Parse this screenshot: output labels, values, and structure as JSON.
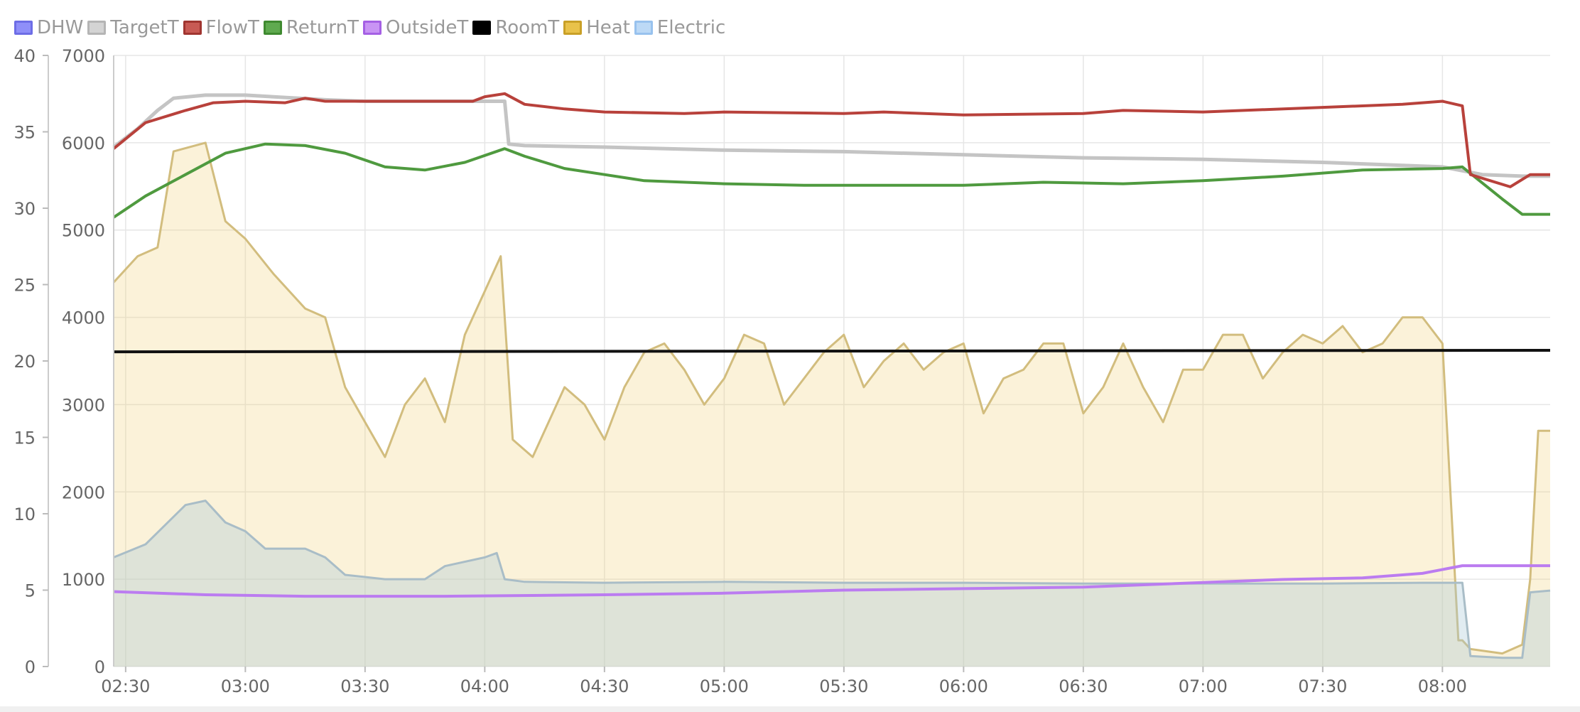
{
  "legend": [
    {
      "name": "DHW",
      "color": "#7b7bf7"
    },
    {
      "name": "TargetT",
      "color": "#c4c4c4"
    },
    {
      "name": "FlowT",
      "color": "#b8413b"
    },
    {
      "name": "ReturnT",
      "color": "#4f9a3f"
    },
    {
      "name": "OutsideT",
      "color": "#bb7cf0"
    },
    {
      "name": "RoomT",
      "color": "#000000"
    },
    {
      "name": "Heat",
      "color": "#e7bd3d"
    },
    {
      "name": "Electric",
      "color": "#b3d4f5"
    }
  ],
  "chart_data": {
    "type": "line",
    "grid": true,
    "legend_position": "top-left",
    "x_ticks": [
      "02:30",
      "03:00",
      "03:30",
      "04:00",
      "04:30",
      "05:00",
      "05:30",
      "06:00",
      "06:30",
      "07:00",
      "07:30",
      "08:00"
    ],
    "xlim": [
      "02:27",
      "08:27"
    ],
    "y_left": {
      "ticks": [
        0,
        5,
        10,
        15,
        20,
        25,
        30,
        35,
        40
      ],
      "ylim": [
        0,
        40
      ]
    },
    "y_right": {
      "ticks": [
        0,
        1000,
        2000,
        3000,
        4000,
        5000,
        6000,
        7000
      ],
      "ylim": [
        0,
        7000
      ]
    },
    "series": [
      {
        "name": "FlowT",
        "axis": "left",
        "color": "#b8413b",
        "type": "line",
        "x": [
          "02:27",
          "02:35",
          "02:45",
          "02:52",
          "03:00",
          "03:10",
          "03:15",
          "03:20",
          "03:40",
          "03:57",
          "04:00",
          "04:05",
          "04:10",
          "04:20",
          "04:30",
          "04:50",
          "05:00",
          "05:30",
          "05:40",
          "06:00",
          "06:30",
          "06:40",
          "07:00",
          "07:30",
          "07:50",
          "08:00",
          "08:05",
          "08:07",
          "08:17",
          "08:22",
          "08:27"
        ],
        "y": [
          33.9,
          35.6,
          36.4,
          36.9,
          37.0,
          36.9,
          37.2,
          37.0,
          37.0,
          37.0,
          37.3,
          37.5,
          36.8,
          36.5,
          36.3,
          36.2,
          36.3,
          36.2,
          36.3,
          36.1,
          36.2,
          36.4,
          36.3,
          36.6,
          36.8,
          37.0,
          36.7,
          32.2,
          31.4,
          32.2,
          32.2
        ]
      },
      {
        "name": "TargetT",
        "axis": "left",
        "color": "#c4c4c4",
        "type": "line",
        "x": [
          "02:27",
          "02:33",
          "02:38",
          "02:42",
          "02:50",
          "03:00",
          "03:20",
          "03:30",
          "04:05",
          "04:06",
          "04:10",
          "04:30",
          "05:00",
          "05:30",
          "06:00",
          "06:30",
          "07:00",
          "07:30",
          "08:00",
          "08:10",
          "08:20",
          "08:27"
        ],
        "y": [
          34.0,
          35.2,
          36.4,
          37.2,
          37.4,
          37.4,
          37.1,
          37.0,
          37.0,
          34.2,
          34.1,
          34.0,
          33.8,
          33.7,
          33.5,
          33.3,
          33.2,
          33.0,
          32.7,
          32.2,
          32.1,
          32.1
        ]
      },
      {
        "name": "ReturnT",
        "axis": "left",
        "color": "#4f9a3f",
        "type": "line",
        "x": [
          "02:27",
          "02:35",
          "02:45",
          "02:55",
          "03:05",
          "03:15",
          "03:25",
          "03:35",
          "03:45",
          "03:55",
          "04:05",
          "04:10",
          "04:20",
          "04:30",
          "04:40",
          "05:00",
          "05:20",
          "05:40",
          "06:00",
          "06:20",
          "06:40",
          "07:00",
          "07:20",
          "07:40",
          "08:00",
          "08:05",
          "08:15",
          "08:20",
          "08:27"
        ],
        "y": [
          29.4,
          30.8,
          32.2,
          33.6,
          34.2,
          34.1,
          33.6,
          32.7,
          32.5,
          33.0,
          33.9,
          33.4,
          32.6,
          32.2,
          31.8,
          31.6,
          31.5,
          31.5,
          31.5,
          31.7,
          31.6,
          31.8,
          32.1,
          32.5,
          32.6,
          32.7,
          30.6,
          29.6,
          29.6
        ]
      },
      {
        "name": "RoomT",
        "axis": "left",
        "color": "#000000",
        "type": "line",
        "x": [
          "02:27",
          "08:27"
        ],
        "y": [
          20.6,
          20.7
        ]
      },
      {
        "name": "OutsideT",
        "axis": "left",
        "color": "#bb7cf0",
        "type": "line",
        "x": [
          "02:27",
          "02:50",
          "03:15",
          "03:50",
          "04:30",
          "05:00",
          "05:30",
          "06:00",
          "06:30",
          "07:00",
          "07:20",
          "07:40",
          "07:55",
          "08:05",
          "08:27"
        ],
        "y": [
          4.9,
          4.7,
          4.6,
          4.6,
          4.7,
          4.8,
          5.0,
          5.1,
          5.2,
          5.5,
          5.7,
          5.8,
          6.1,
          6.6,
          6.6
        ]
      },
      {
        "name": "Heat",
        "axis": "right",
        "color": "#e7bd3d",
        "type": "area",
        "x": [
          "02:27",
          "02:33",
          "02:38",
          "02:42",
          "02:50",
          "02:55",
          "03:00",
          "03:07",
          "03:15",
          "03:20",
          "03:25",
          "03:30",
          "03:35",
          "03:40",
          "03:45",
          "03:50",
          "03:55",
          "04:00",
          "04:04",
          "04:07",
          "04:12",
          "04:20",
          "04:25",
          "04:30",
          "04:35",
          "04:40",
          "04:45",
          "04:50",
          "04:55",
          "05:00",
          "05:05",
          "05:10",
          "05:15",
          "05:20",
          "05:25",
          "05:30",
          "05:35",
          "05:40",
          "05:45",
          "05:50",
          "05:55",
          "06:00",
          "06:05",
          "06:10",
          "06:15",
          "06:20",
          "06:25",
          "06:30",
          "06:35",
          "06:40",
          "06:45",
          "06:50",
          "06:55",
          "07:00",
          "07:05",
          "07:10",
          "07:15",
          "07:20",
          "07:25",
          "07:30",
          "07:35",
          "07:40",
          "07:45",
          "07:50",
          "07:55",
          "08:00",
          "08:04",
          "08:05",
          "08:07",
          "08:15",
          "08:20",
          "08:22",
          "08:24",
          "08:27"
        ],
        "y": [
          4400,
          4700,
          4800,
          5900,
          6000,
          5100,
          4900,
          4500,
          4100,
          4000,
          3200,
          2800,
          2400,
          3000,
          3300,
          2800,
          3800,
          4300,
          4700,
          2600,
          2400,
          3200,
          3000,
          2600,
          3200,
          3600,
          3700,
          3400,
          3000,
          3300,
          3800,
          3700,
          3000,
          3300,
          3600,
          3800,
          3200,
          3500,
          3700,
          3400,
          3600,
          3700,
          2900,
          3300,
          3400,
          3700,
          3700,
          2900,
          3200,
          3700,
          3200,
          2800,
          3400,
          3400,
          3800,
          3800,
          3300,
          3600,
          3800,
          3700,
          3900,
          3600,
          3700,
          4000,
          4000,
          3700,
          300,
          300,
          200,
          150,
          250,
          1000,
          2700,
          2700
        ]
      },
      {
        "name": "Electric",
        "axis": "right",
        "color": "#b3d4f5",
        "type": "area",
        "x": [
          "02:27",
          "02:35",
          "02:45",
          "02:50",
          "02:55",
          "03:00",
          "03:05",
          "03:15",
          "03:20",
          "03:25",
          "03:35",
          "03:45",
          "03:50",
          "04:00",
          "04:03",
          "04:05",
          "04:10",
          "04:30",
          "05:00",
          "05:30",
          "06:00",
          "06:30",
          "07:00",
          "07:30",
          "07:55",
          "08:05",
          "08:07",
          "08:15",
          "08:20",
          "08:22",
          "08:27"
        ],
        "y": [
          1250,
          1400,
          1850,
          1900,
          1650,
          1550,
          1350,
          1350,
          1250,
          1050,
          1000,
          1000,
          1150,
          1250,
          1300,
          1000,
          970,
          960,
          970,
          960,
          960,
          950,
          950,
          950,
          960,
          960,
          120,
          100,
          100,
          850,
          870
        ]
      }
    ]
  }
}
